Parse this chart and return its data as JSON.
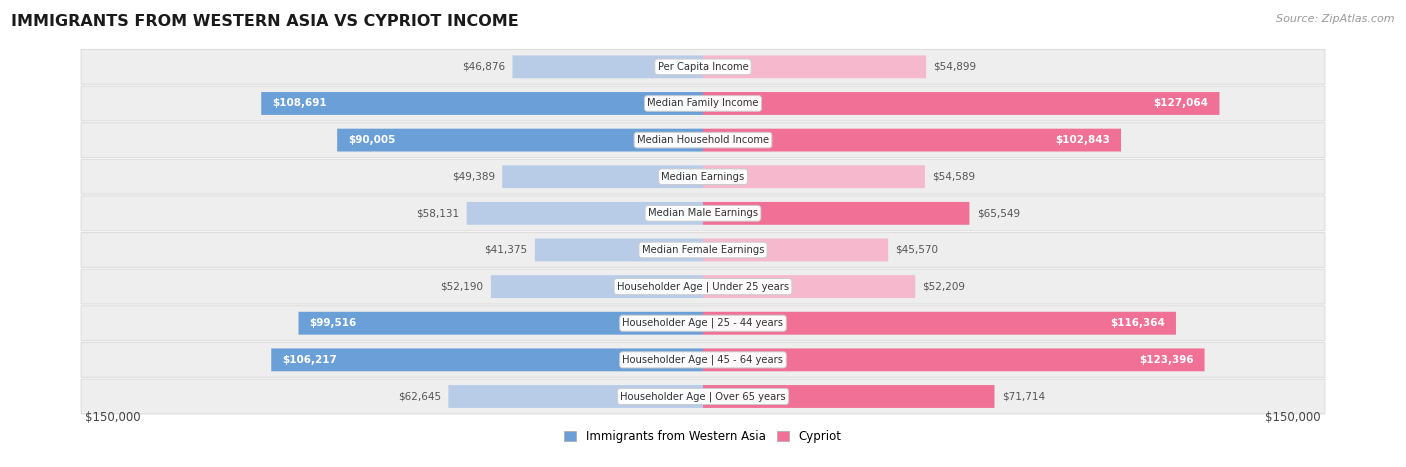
{
  "title": "IMMIGRANTS FROM WESTERN ASIA VS CYPRIOT INCOME",
  "source": "Source: ZipAtlas.com",
  "categories": [
    "Per Capita Income",
    "Median Family Income",
    "Median Household Income",
    "Median Earnings",
    "Median Male Earnings",
    "Median Female Earnings",
    "Householder Age | Under 25 years",
    "Householder Age | 25 - 44 years",
    "Householder Age | 45 - 64 years",
    "Householder Age | Over 65 years"
  ],
  "left_values": [
    46876,
    108691,
    90005,
    49389,
    58131,
    41375,
    52190,
    99516,
    106217,
    62645
  ],
  "right_values": [
    54899,
    127064,
    102843,
    54589,
    65549,
    45570,
    52209,
    116364,
    123396,
    71714
  ],
  "left_labels": [
    "$46,876",
    "$108,691",
    "$90,005",
    "$49,389",
    "$58,131",
    "$41,375",
    "$52,190",
    "$99,516",
    "$106,217",
    "$62,645"
  ],
  "right_labels": [
    "$54,899",
    "$127,064",
    "$102,843",
    "$54,589",
    "$65,549",
    "$45,570",
    "$52,209",
    "$116,364",
    "$123,396",
    "$71,714"
  ],
  "left_inside": [
    false,
    true,
    true,
    false,
    false,
    false,
    false,
    true,
    true,
    false
  ],
  "right_inside": [
    false,
    true,
    true,
    false,
    false,
    false,
    false,
    true,
    true,
    false
  ],
  "max_value": 150000,
  "left_color_light": "#b8cce8",
  "left_color_dark": "#6a9fd8",
  "right_color_light": "#f5b8cc",
  "right_color_dark": "#f07096",
  "fig_bg": "#ffffff",
  "row_bg": "#eeeeee",
  "row_border": "#dddddd",
  "title_color": "#1a1a1a",
  "source_color": "#999999",
  "label_outside_color": "#555555",
  "label_inside_color": "#ffffff",
  "legend_left_label": "Immigrants from Western Asia",
  "legend_right_label": "Cypriot",
  "axis_label_left": "$150,000",
  "axis_label_right": "$150,000",
  "bar_height": 0.62,
  "inside_threshold": 65000
}
